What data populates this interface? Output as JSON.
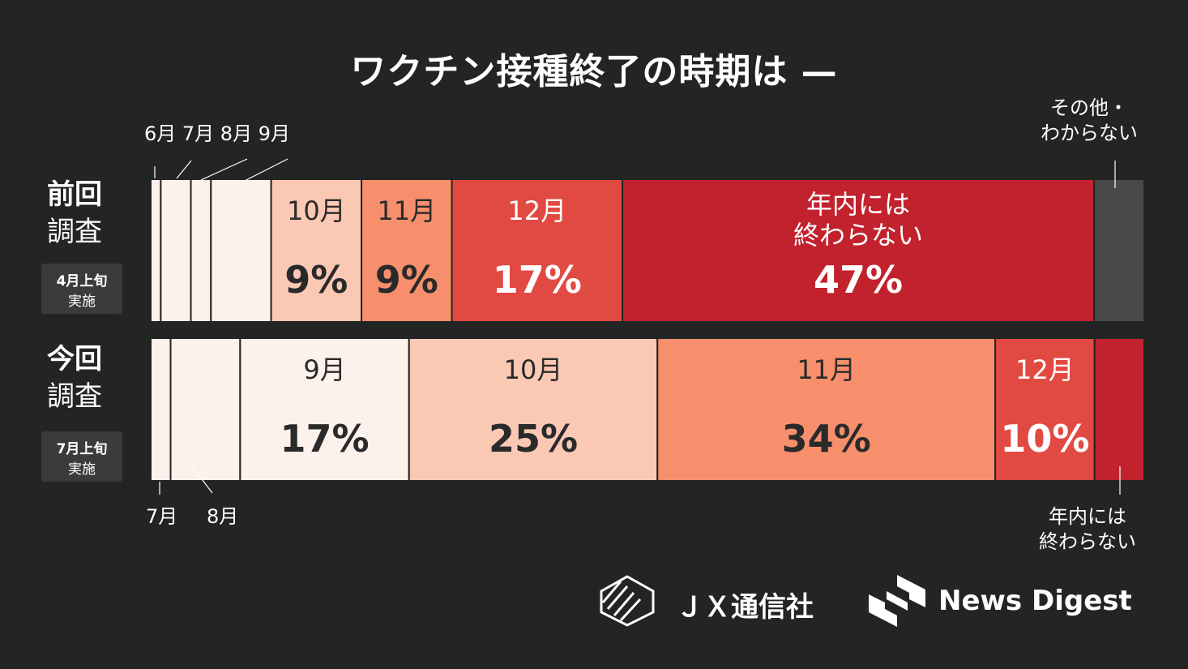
{
  "title": "ワクチン接種終了の時期は —",
  "rows": [
    {
      "label_line1": "前回",
      "label_line2": "調査",
      "badge_line1": "4月上旬",
      "badge_line2": "実施"
    },
    {
      "label_line1": "今回",
      "label_line2": "調査",
      "badge_line1": "7月上旬",
      "badge_line2": "実施"
    }
  ],
  "annotations": {
    "prev_small_months": "6月 7月 8月 9月",
    "prev_other": [
      "その他・",
      "わからない"
    ],
    "curr_jul": "7月",
    "curr_aug": "8月",
    "curr_notyear": [
      "年内には",
      "終わらない"
    ]
  },
  "chart_data": {
    "type": "bar",
    "orientation": "horizontal-stacked-100",
    "categories": [
      "前回調査",
      "今回調査"
    ],
    "rows": [
      {
        "name": "前回調査",
        "segments": [
          {
            "label": "6月",
            "value": 1,
            "color": "#fdf1ec"
          },
          {
            "label": "7月",
            "value": 3,
            "color": "#fdf1ec"
          },
          {
            "label": "8月",
            "value": 2,
            "color": "#fdf1ec"
          },
          {
            "label": "9月",
            "value": 6,
            "color": "#fdf1ec"
          },
          {
            "label": "10月",
            "value": 9,
            "color": "#fbc8b4",
            "value_text": "9%"
          },
          {
            "label": "11月",
            "value": 9,
            "color": "#f88f6c",
            "value_text": "9%"
          },
          {
            "label": "12月",
            "value": 17,
            "color": "#e14a42",
            "value_text": "17%"
          },
          {
            "label": "年内には 終わらない",
            "value": 47,
            "color": "#c1222e",
            "value_text": "47%"
          },
          {
            "label": "その他・わからない",
            "value": 5,
            "color": "#494949"
          }
        ]
      },
      {
        "name": "今回調査",
        "segments": [
          {
            "label": "7月",
            "value": 2,
            "color": "#fdf1ec"
          },
          {
            "label": "8月",
            "value": 7,
            "color": "#fdf1ec"
          },
          {
            "label": "9月",
            "value": 17,
            "color": "#fdf1ec",
            "value_text": "17%"
          },
          {
            "label": "10月",
            "value": 25,
            "color": "#fbc8b4",
            "value_text": "25%"
          },
          {
            "label": "11月",
            "value": 34,
            "color": "#f88f6c",
            "value_text": "34%"
          },
          {
            "label": "12月",
            "value": 10,
            "color": "#e14a42",
            "value_text": "10%"
          },
          {
            "label": "年内には終わらない",
            "value": 5,
            "color": "#c1222e"
          }
        ]
      }
    ]
  },
  "footer": {
    "brand1": "ＪＸ通信社",
    "brand2": "News Digest"
  }
}
